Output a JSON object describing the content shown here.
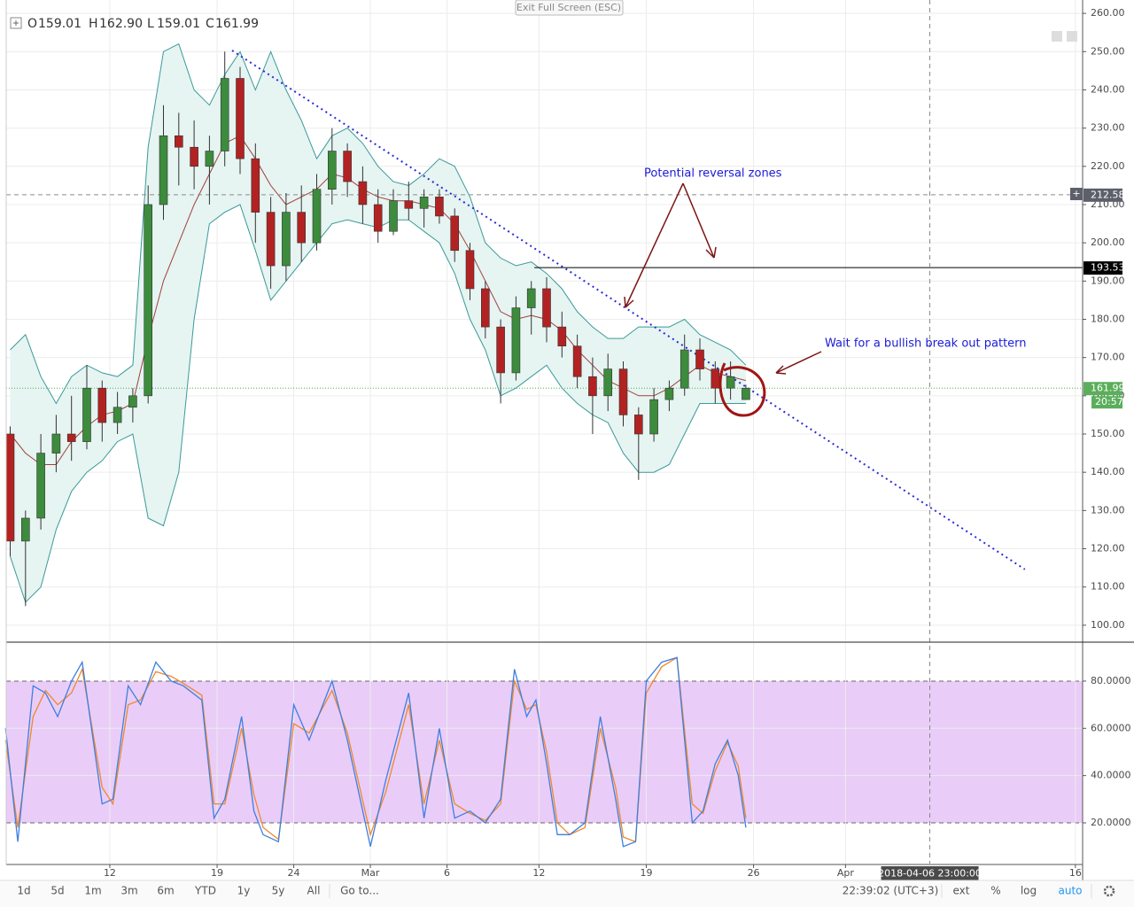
{
  "exit_fullscreen": "Exit Full Screen (ESC)",
  "header": {
    "ohlc": [
      {
        "key": "O",
        "value": 159.01
      },
      {
        "key": "H",
        "value": {
          "value": 162.9,
          "label": "162.90"
        }
      },
      {
        "key": "L",
        "value": 159.01
      },
      {
        "key": "C",
        "value": 161.99
      }
    ]
  },
  "annotations": [
    "Potential reversal zones",
    "Wait for a bullish break out pattern"
  ],
  "toolbar": {
    "ranges": [
      "1d",
      "5d",
      "1m",
      "3m",
      "6m",
      "YTD",
      "1y",
      "5y",
      "All"
    ],
    "goto": "Go to...",
    "clock": "22:39:02 (UTC+3)",
    "options": [
      "ext",
      "%",
      "log",
      "auto"
    ]
  },
  "chart_data": [
    {
      "type": "candlestick",
      "x": [
        5.5,
        6.5,
        7.5,
        8.5,
        9.5,
        10.5,
        11.5,
        12.5,
        13.5,
        14.5,
        15.5,
        16.5,
        17.5,
        18.5,
        19.5,
        20.5,
        21.5,
        22.5,
        23.5,
        24.5,
        25.5,
        26.5,
        27.5,
        28.5,
        29.5,
        30.5,
        31.5,
        32.5,
        33.5,
        34.5,
        35.5,
        36.5,
        37.5,
        38.5,
        39.5,
        40.5,
        41.5,
        42.5,
        43.5,
        44.5,
        45.5,
        46.5,
        47.5,
        48.5,
        49.5,
        50.5,
        51.5,
        52.5,
        53.5
      ],
      "open": [
        150,
        122,
        128,
        145,
        150,
        148,
        162,
        153,
        157,
        160,
        210,
        228,
        225,
        220,
        224,
        243,
        222,
        208,
        194,
        208,
        200,
        214,
        224,
        216,
        210,
        203,
        211,
        209,
        212,
        207,
        198,
        188,
        178,
        166,
        183,
        188,
        178,
        173,
        165,
        160,
        167,
        155,
        150,
        159,
        162,
        172,
        167,
        162,
        159.01
      ],
      "high": [
        152,
        130,
        150,
        155,
        160,
        168,
        164,
        161,
        162,
        215,
        236,
        234,
        232,
        228,
        250,
        246,
        226,
        212,
        213,
        215,
        218,
        230,
        226,
        220,
        214,
        214,
        216,
        214,
        214,
        209,
        200,
        190,
        180,
        186,
        190,
        191,
        182,
        176,
        170,
        171,
        169,
        157,
        162,
        164,
        176,
        175,
        169,
        169,
        162.9
      ],
      "low": [
        118,
        105,
        125,
        140,
        143,
        146,
        148,
        150,
        153,
        158,
        206,
        215,
        214,
        210,
        220,
        218,
        200,
        188,
        190,
        195,
        198,
        210,
        212,
        205,
        200,
        202,
        206,
        204,
        205,
        195,
        185,
        175,
        158,
        164,
        176,
        174,
        170,
        162,
        150,
        156,
        152,
        138,
        148,
        156,
        160,
        164,
        158,
        159,
        159.01
      ],
      "close": [
        122,
        128,
        145,
        150,
        148,
        162,
        153,
        157,
        160,
        210,
        228,
        225,
        220,
        224,
        243,
        222,
        208,
        194,
        208,
        200,
        214,
        224,
        216,
        210,
        203,
        211,
        209,
        212,
        207,
        198,
        188,
        178,
        166,
        183,
        188,
        178,
        173,
        165,
        160,
        167,
        155,
        150,
        159,
        162,
        172,
        167,
        162,
        165,
        161.99
      ],
      "up_color": "#3d8b3d",
      "down_color": "#b22222",
      "bands": {
        "upper": [
          172,
          176,
          165,
          158,
          165,
          168,
          166,
          165,
          168,
          225,
          250,
          252,
          240,
          236,
          244,
          250,
          240,
          250,
          240,
          232,
          222,
          228,
          230,
          226,
          220,
          216,
          215,
          218,
          222,
          220,
          212,
          200,
          196,
          194,
          195,
          192,
          188,
          182,
          178,
          175,
          175,
          178,
          178,
          178,
          180,
          176,
          174,
          172,
          168
        ],
        "middle": [
          150,
          145,
          142,
          142,
          148,
          152,
          155,
          156,
          158,
          175,
          190,
          200,
          210,
          218,
          226,
          228,
          222,
          215,
          210,
          212,
          214,
          218,
          217,
          214,
          212,
          211,
          211,
          210,
          209,
          205,
          198,
          190,
          182,
          180,
          181,
          180,
          177,
          172,
          168,
          164,
          162,
          160,
          160,
          162,
          165,
          168,
          166,
          165,
          164
        ],
        "lower": [
          118,
          106,
          110,
          125,
          135,
          140,
          143,
          148,
          150,
          128,
          126,
          140,
          180,
          205,
          208,
          210,
          198,
          185,
          190,
          195,
          200,
          205,
          206,
          205,
          204,
          206,
          206,
          203,
          200,
          192,
          180,
          172,
          160,
          162,
          165,
          168,
          162,
          158,
          155,
          153,
          145,
          140,
          140,
          142,
          150,
          158,
          158,
          158,
          158
        ],
        "line_color": "#3a9a9a",
        "middle_color": "#a0403c",
        "fill": "#e6f4f2"
      },
      "trendline": {
        "x": [
          19.98,
          71.7
        ],
        "y": [
          250.3,
          114.6
        ],
        "color": "#2a2ad8"
      },
      "hlines": [
        {
          "value": 212.58,
          "color": "#8c8c8c",
          "style": "dashed",
          "label_color": "#5d606b"
        },
        {
          "value": 193.53,
          "color": "#000000",
          "style": "solid",
          "x_start": 39.7,
          "label_color": "#000000"
        },
        {
          "value": 161.99,
          "color": "#4caf50",
          "style": "dotted",
          "label_color": "#5bae5b",
          "countdown": "20:57"
        }
      ],
      "crosshair": {
        "x": 65.5,
        "label": "2018-04-06 23:00:00"
      },
      "xlim": [
        5.24,
        75.47
      ],
      "xticks": [
        12,
        19,
        24,
        {
          "value": 29,
          "label": "Mar"
        },
        {
          "value": 34,
          "label": "6"
        },
        {
          "value": 40,
          "label": "12"
        },
        {
          "value": 47,
          "label": "19"
        },
        {
          "value": 54,
          "label": "26"
        },
        {
          "value": 60,
          "label": "Apr"
        },
        {
          "value": 75,
          "label": "16"
        }
      ],
      "ylim": [
        95.8,
        263.5
      ],
      "yticks": [
        {
          "value": 100,
          "label": "100.00"
        },
        {
          "value": 110,
          "label": "110.00"
        },
        {
          "value": 120,
          "label": "120.00"
        },
        {
          "value": 130,
          "label": "130.00"
        },
        {
          "value": 140,
          "label": "140.00"
        },
        {
          "value": 150,
          "label": "150.00"
        },
        {
          "value": 160,
          "label": "160.00"
        },
        {
          "value": 170,
          "label": "170.00"
        },
        {
          "value": 180,
          "label": "180.00"
        },
        {
          "value": 190,
          "label": "190.00"
        },
        {
          "value": 200,
          "label": "200.00"
        },
        {
          "value": 210,
          "label": "210.00"
        },
        {
          "value": 220,
          "label": "220.00"
        },
        {
          "value": 230,
          "label": "230.00"
        },
        {
          "value": 240,
          "label": "240.00"
        },
        {
          "value": 250,
          "label": "250.00"
        },
        {
          "value": 260,
          "label": "260.00"
        }
      ],
      "grid": true
    },
    {
      "type": "line",
      "x": [
        5.2,
        6,
        7,
        7.8,
        8.6,
        9.5,
        10.2,
        11.5,
        12.2,
        13.2,
        14,
        15,
        16,
        16.8,
        18,
        18.8,
        19.5,
        20.6,
        21.4,
        22,
        23,
        24,
        25,
        26.5,
        27.5,
        29,
        30,
        31.5,
        32.5,
        33.5,
        34.5,
        35.5,
        36.5,
        37.5,
        38.4,
        39.2,
        39.8,
        40.5,
        41.2,
        42,
        43,
        44,
        45,
        45.5,
        46.3,
        47,
        48,
        49,
        50,
        50.7,
        51.5,
        52.3,
        53,
        53.5
      ],
      "series": [
        {
          "color": "#f0882c",
          "values": [
            55,
            18,
            65,
            76,
            70,
            75,
            85,
            35,
            28,
            70,
            72,
            84,
            82,
            79,
            74,
            28,
            28,
            60,
            32,
            18,
            13,
            62,
            58,
            76,
            58,
            15,
            33,
            70,
            28,
            55,
            28,
            24,
            21,
            28,
            80,
            68,
            70,
            50,
            20,
            15,
            18,
            60,
            35,
            14,
            12,
            75,
            86,
            90,
            28,
            24,
            42,
            54,
            44,
            22
          ]
        },
        {
          "color": "#3d7fe0",
          "values": [
            60,
            12,
            78,
            75,
            65,
            80,
            88,
            28,
            30,
            78,
            70,
            88,
            80,
            78,
            72,
            22,
            30,
            65,
            25,
            15,
            12,
            70,
            55,
            80,
            55,
            10,
            38,
            75,
            22,
            60,
            22,
            25,
            20,
            30,
            85,
            65,
            72,
            45,
            15,
            15,
            20,
            65,
            30,
            10,
            12,
            80,
            88,
            90,
            20,
            25,
            45,
            55,
            40,
            18
          ]
        }
      ],
      "band": [
        20,
        80
      ],
      "band_color": "#e9cdf8",
      "ylim": [
        2.75,
        96.1
      ],
      "yticks": [
        {
          "value": 20,
          "label": "20.0000"
        },
        {
          "value": 40,
          "label": "40.0000"
        },
        {
          "value": 60,
          "label": "60.0000"
        },
        {
          "value": 80,
          "label": "80.0000"
        }
      ],
      "grid": true
    }
  ]
}
